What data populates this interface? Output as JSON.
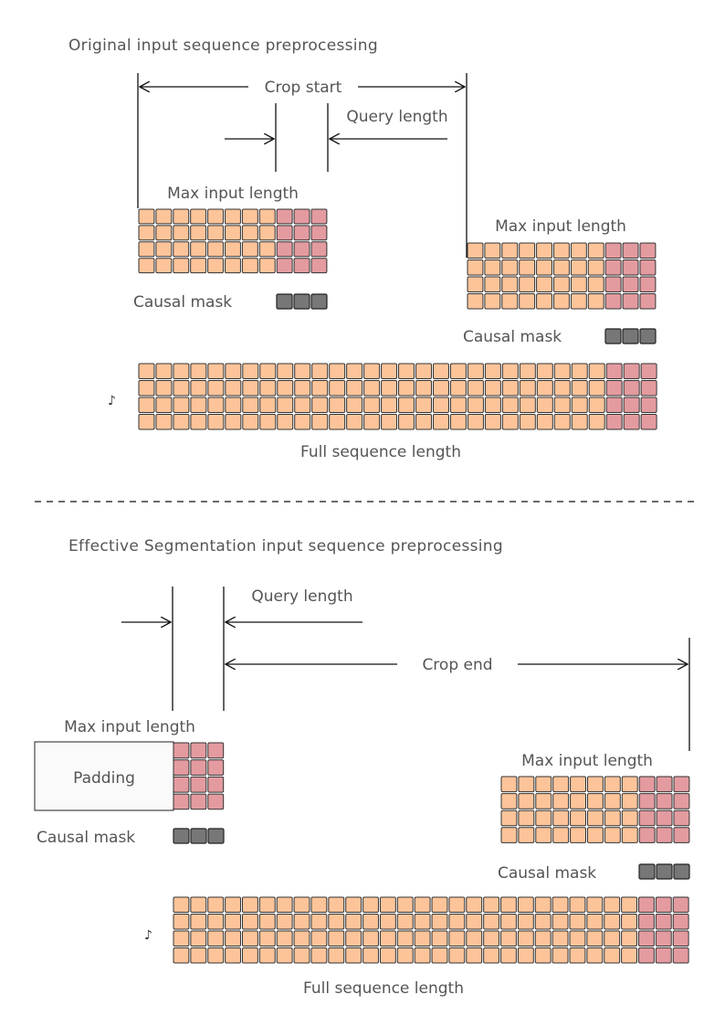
{
  "top_section": {
    "title": "Original input sequence preprocessing",
    "crop_start": "Crop start",
    "query_length": "Query length",
    "left_max_input": "Max input length",
    "left_causal_mask": "Causal mask",
    "right_max_input": "Max input length",
    "right_causal_mask": "Causal mask",
    "full_seq_marker": "♪",
    "full_sequence": "Full sequence length"
  },
  "bottom_section": {
    "title": "Effective Segmentation input sequence preprocessing",
    "query_length": "Query length",
    "crop_end": "Crop end",
    "left_max_input": "Max input length",
    "padding": "Padding",
    "left_causal_mask": "Causal mask",
    "right_max_input": "Max input length",
    "right_causal_mask": "Causal mask",
    "full_seq_marker": "♪",
    "full_sequence": "Full sequence length"
  },
  "colors": {
    "orange_cell": "#FDC49A",
    "pink_cell": "#E39BA0",
    "mask_cell": "#777777",
    "text": "#555555"
  }
}
